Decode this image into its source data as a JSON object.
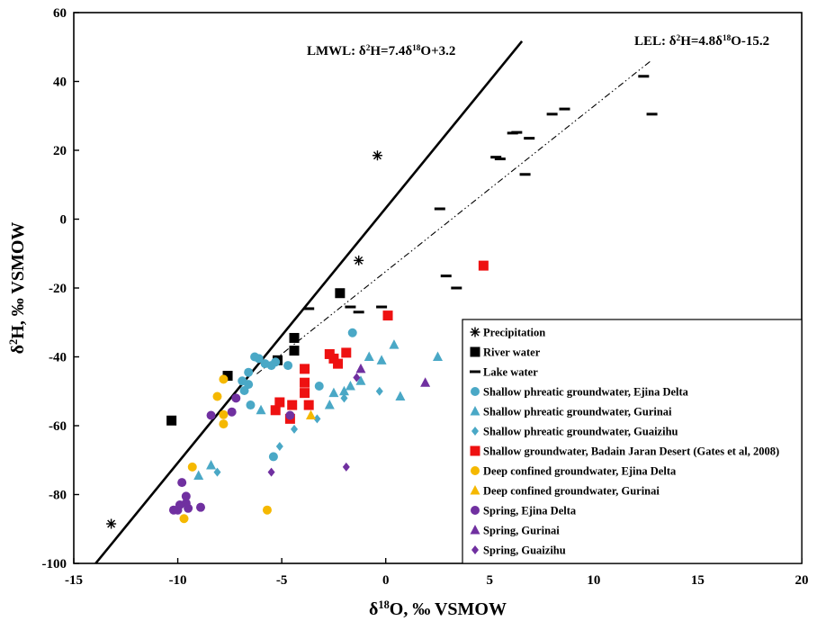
{
  "chart_data": {
    "type": "scatter",
    "xlabel_parts": [
      "δ",
      "18",
      "O, ‰ VSMOW"
    ],
    "ylabel_parts": [
      "δ",
      "2",
      "H, ‰ VSMOW"
    ],
    "xlim": [
      -15,
      20
    ],
    "ylim": [
      -100,
      60
    ],
    "xticks": [
      -15,
      -10,
      -5,
      0,
      5,
      10,
      15,
      20
    ],
    "yticks": [
      -100,
      -80,
      -60,
      -40,
      -20,
      0,
      20,
      40,
      60
    ],
    "grid": false,
    "legend_position": "bottom-right",
    "lines": [
      {
        "label_parts": [
          "LMWL:  δ",
          "2",
          "H=7.4δ",
          "18",
          "O+3.2"
        ],
        "slope": 7.4,
        "intercept": 3.2,
        "style": "solid",
        "x_range": [
          -13.95,
          6.55
        ]
      },
      {
        "label_parts": [
          "LEL: δ",
          "2",
          "H=4.8δ",
          "18",
          "O-15.2"
        ],
        "slope": 4.8,
        "intercept": -15.2,
        "style": "dashdot",
        "x_range": [
          -6.2,
          12.8
        ]
      }
    ],
    "series": [
      {
        "name": "Precipitation",
        "marker": "asterisk",
        "color": "#000000",
        "points": [
          [
            -13.2,
            -88.5
          ],
          [
            -0.4,
            18.5
          ],
          [
            -1.3,
            -12
          ]
        ]
      },
      {
        "name": "River water",
        "marker": "square",
        "color": "#000000",
        "points": [
          [
            -10.3,
            -58.5
          ],
          [
            -7.6,
            -45.5
          ],
          [
            -5.2,
            -41
          ],
          [
            -4.4,
            -34.5
          ],
          [
            -4.4,
            -38.2
          ],
          [
            -2.2,
            -21.5
          ]
        ]
      },
      {
        "name": "Lake water",
        "marker": "dash",
        "color": "#000000",
        "points": [
          [
            -3.7,
            -26
          ],
          [
            -1.7,
            -25.5
          ],
          [
            -1.3,
            -27
          ],
          [
            -0.2,
            -25.5
          ],
          [
            2.6,
            3
          ],
          [
            2.9,
            -16.5
          ],
          [
            3.4,
            -20
          ],
          [
            5.3,
            18
          ],
          [
            5.5,
            17.5
          ],
          [
            6.1,
            25
          ],
          [
            6.3,
            25.2
          ],
          [
            6.7,
            13
          ],
          [
            6.9,
            23.5
          ],
          [
            8.0,
            30.5
          ],
          [
            8.6,
            32
          ],
          [
            12.4,
            41.5
          ],
          [
            12.8,
            30.5
          ]
        ]
      },
      {
        "name": "Shallow phreatic groundwater, Ejina Delta",
        "marker": "circle",
        "color": "#4aa8c6",
        "points": [
          [
            -6.3,
            -40
          ],
          [
            -6.1,
            -40.5
          ],
          [
            -5.8,
            -42
          ],
          [
            -5.5,
            -42.5
          ],
          [
            -5.3,
            -41.5
          ],
          [
            -6.6,
            -44.5
          ],
          [
            -6.9,
            -47
          ],
          [
            -6.6,
            -48
          ],
          [
            -6.8,
            -49.8
          ],
          [
            -6.5,
            -54
          ],
          [
            -4.7,
            -42.5
          ],
          [
            -3.2,
            -48.5
          ],
          [
            -5.4,
            -69
          ],
          [
            -1.6,
            -33
          ]
        ]
      },
      {
        "name": "Shallow phreatic groundwater, Gurinai",
        "marker": "triangle",
        "color": "#4aa8c6",
        "points": [
          [
            -8.4,
            -71.5
          ],
          [
            -9.0,
            -74.5
          ],
          [
            -6.0,
            -55.5
          ],
          [
            -2.7,
            -54
          ],
          [
            -2.5,
            -50.5
          ],
          [
            -2.0,
            -50
          ],
          [
            -1.7,
            -48.5
          ],
          [
            -1.2,
            -47
          ],
          [
            -0.8,
            -40
          ],
          [
            -0.2,
            -41
          ],
          [
            0.4,
            -36.5
          ],
          [
            0.7,
            -51.5
          ],
          [
            2.5,
            -40
          ]
        ]
      },
      {
        "name": "Shallow phreatic groundwater, Guaizihu",
        "marker": "diamond",
        "color": "#4aa8c6",
        "points": [
          [
            -8.1,
            -73.5
          ],
          [
            -5.1,
            -66
          ],
          [
            -4.4,
            -61
          ],
          [
            -3.3,
            -58
          ],
          [
            -2.0,
            -52
          ],
          [
            -0.3,
            -50
          ]
        ]
      },
      {
        "name": "Shallow groundwater, Badain Jaran Desert (Gates et al, 2008)",
        "marker": "square",
        "color": "#ee1111",
        "points": [
          [
            -5.3,
            -55.5
          ],
          [
            -5.1,
            -53.2
          ],
          [
            -4.6,
            -58
          ],
          [
            -4.5,
            -54
          ],
          [
            -3.9,
            -43.5
          ],
          [
            -3.9,
            -47.5
          ],
          [
            -3.9,
            -50.5
          ],
          [
            -3.7,
            -54
          ],
          [
            -2.7,
            -39.2
          ],
          [
            -2.5,
            -40.5
          ],
          [
            -2.3,
            -42
          ],
          [
            -1.9,
            -38.8
          ],
          [
            0.1,
            -28
          ],
          [
            4.7,
            -13.5
          ]
        ]
      },
      {
        "name": "Deep confined groundwater, Ejina Delta",
        "marker": "circle",
        "color": "#f5b800",
        "points": [
          [
            -7.8,
            -46.5
          ],
          [
            -8.1,
            -51.5
          ],
          [
            -7.8,
            -56.8
          ],
          [
            -7.8,
            -59.5
          ],
          [
            -9.3,
            -72
          ],
          [
            -9.7,
            -87
          ],
          [
            -5.7,
            -84.5
          ]
        ]
      },
      {
        "name": "Deep confined groundwater, Gurinai",
        "marker": "triangle",
        "color": "#f5b800",
        "points": [
          [
            -3.6,
            -57
          ]
        ]
      },
      {
        "name": "Spring, Ejina Delta",
        "marker": "circle",
        "color": "#7030a0",
        "points": [
          [
            -8.4,
            -57
          ],
          [
            -7.4,
            -56
          ],
          [
            -7.2,
            -52
          ],
          [
            -9.8,
            -76.5
          ],
          [
            -9.6,
            -80.5
          ],
          [
            -9.6,
            -82.5
          ],
          [
            -9.5,
            -84
          ],
          [
            -9.9,
            -83
          ],
          [
            -10.0,
            -84.5
          ],
          [
            -10.2,
            -84.5
          ],
          [
            -8.9,
            -83.7
          ],
          [
            -4.6,
            -57
          ]
        ]
      },
      {
        "name": "Spring, Gurinai",
        "marker": "triangle",
        "color": "#7030a0",
        "points": [
          [
            -1.2,
            -43.5
          ],
          [
            1.9,
            -47.5
          ]
        ]
      },
      {
        "name": "Spring, Guaizihu",
        "marker": "diamond",
        "color": "#7030a0",
        "points": [
          [
            -5.5,
            -73.5
          ],
          [
            -1.9,
            -72
          ],
          [
            -1.4,
            -46
          ]
        ]
      }
    ]
  }
}
